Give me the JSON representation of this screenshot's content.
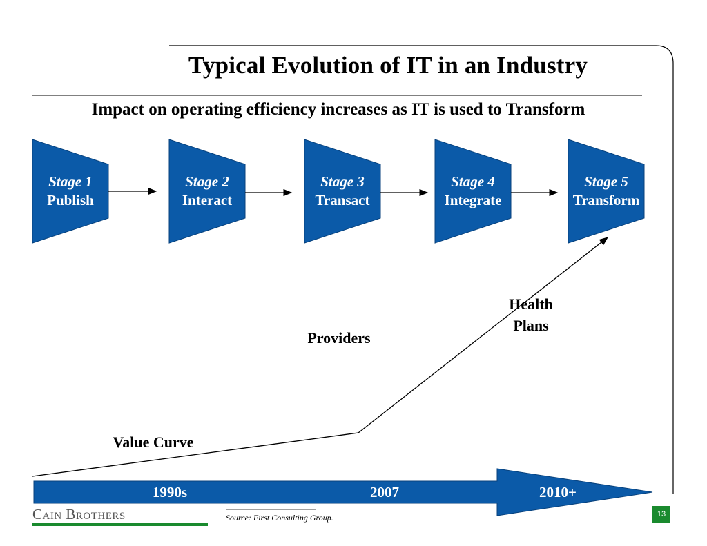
{
  "title": "Typical Evolution of IT in an Industry",
  "subtitle": "Impact on operating efficiency increases as IT is used to Transform",
  "stages": [
    {
      "stage": "Stage 1",
      "name": "Publish"
    },
    {
      "stage": "Stage 2",
      "name": "Interact"
    },
    {
      "stage": "Stage 3",
      "name": "Transact"
    },
    {
      "stage": "Stage 4",
      "name": "Integrate"
    },
    {
      "stage": "Stage 5",
      "name": "Transform"
    }
  ],
  "curve_labels": {
    "health_plans_line1": "Health",
    "health_plans_line2": "Plans",
    "providers": "Providers",
    "value_curve": "Value Curve"
  },
  "timeline": {
    "eras": [
      "1990s",
      "2007",
      "2010+"
    ]
  },
  "footer": {
    "logo": "Cain Brothers",
    "source": "Source: First Consulting Group.",
    "page_number": "13"
  },
  "colors": {
    "stage_fill": "#0b5aa8",
    "logo_underline": "#1a8a2e",
    "page_badge": "#1a8a2e"
  }
}
